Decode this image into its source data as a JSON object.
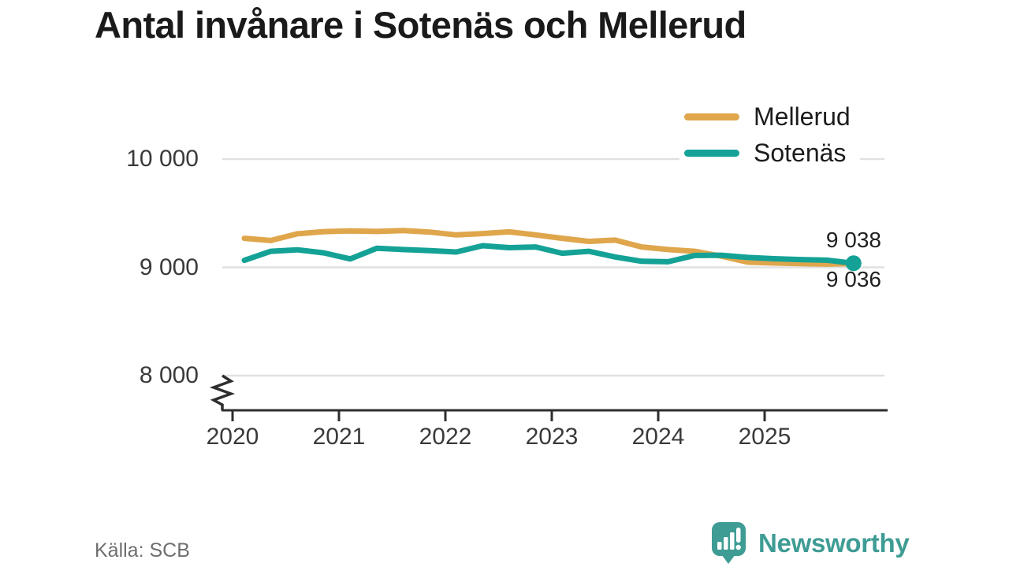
{
  "title": "Antal invånare i Sotenäs och Mellerud",
  "source": "Källa: SCB",
  "branding": {
    "name": "Newsworthy",
    "logo_icon": "newsworthy-speech-bubble-barchart-icon",
    "color": "#3E9C94"
  },
  "colors": {
    "mellerud": "#DFA64C",
    "sotenas": "#15A296",
    "gridline": "#e1e1e1",
    "axis": "#2e2e2e",
    "title_text": "#1a1a1a",
    "tick_text": "#3a3a3a",
    "source_text": "#6e6e6e"
  },
  "chart_data": {
    "type": "line",
    "title": "Antal invånare i Sotenäs och Mellerud",
    "xlabel": "",
    "ylabel": "",
    "legend_position": "top-right",
    "grid": "horizontal",
    "y_axis_break": true,
    "ylim_visible": [
      8000,
      10000
    ],
    "y_ticks": [
      {
        "value": 10000,
        "label": "10 000"
      },
      {
        "value": 9000,
        "label": "9 000"
      },
      {
        "value": 8000,
        "label": "8 000"
      }
    ],
    "x_tick_labels": [
      "2020",
      "2021",
      "2022",
      "2023",
      "2024",
      "2025"
    ],
    "categories": [
      "2020 Q1",
      "2020 Q2",
      "2020 Q3",
      "2020 Q4",
      "2021 Q1",
      "2021 Q2",
      "2021 Q3",
      "2021 Q4",
      "2022 Q1",
      "2022 Q2",
      "2022 Q3",
      "2022 Q4",
      "2023 Q1",
      "2023 Q2",
      "2023 Q3",
      "2023 Q4",
      "2024 Q1",
      "2024 Q2",
      "2024 Q3",
      "2024 Q4",
      "2025 Q1",
      "2025 Q2",
      "2025 Q3",
      "2025 Q4"
    ],
    "series": [
      {
        "name": "Mellerud",
        "color": "#DFA64C",
        "end_label": "9 036",
        "end_value": 9036,
        "end_marker": false,
        "values": [
          9268,
          9248,
          9310,
          9330,
          9336,
          9332,
          9340,
          9326,
          9300,
          9312,
          9328,
          9300,
          9268,
          9240,
          9252,
          9188,
          9164,
          9148,
          9104,
          9048,
          9040,
          9034,
          9030,
          9036
        ]
      },
      {
        "name": "Sotenäs",
        "color": "#15A296",
        "end_label": "9 038",
        "end_value": 9038,
        "end_marker": true,
        "values": [
          9065,
          9148,
          9162,
          9134,
          9078,
          9176,
          9164,
          9154,
          9142,
          9200,
          9182,
          9188,
          9130,
          9148,
          9096,
          9056,
          9052,
          9110,
          9112,
          9092,
          9080,
          9072,
          9066,
          9038
        ]
      }
    ]
  }
}
